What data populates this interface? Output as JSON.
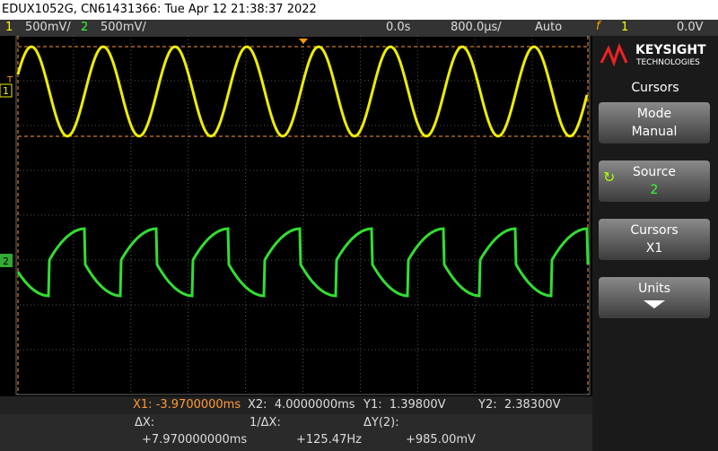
{
  "header": {
    "title": "EDUX1052G, CN61431366: Tue Apr 12 21:38:37 2022"
  },
  "status_bar": {
    "ch1_num": "1",
    "ch1_scale": "500mV/",
    "ch2_num": "2",
    "ch2_scale": "500mV/",
    "delay": "0.0s",
    "timebase": "800.0µs/",
    "trigger_mode": "Auto",
    "trigger_icon": "f",
    "trigger_source": "1",
    "trigger_level": "0.0V"
  },
  "screen_markers": {
    "trigger": "T",
    "ch1": "1",
    "ch2": "2"
  },
  "side_panel": {
    "brand": "KEYSIGHT",
    "brand_sub": "TECHNOLOGIES",
    "menu_title": "Cursors",
    "buttons": [
      {
        "label": "Mode",
        "value": "Manual"
      },
      {
        "label": "Source",
        "value": "2"
      },
      {
        "label": "Cursors",
        "value": "X1"
      },
      {
        "label": "Units"
      }
    ]
  },
  "cursor_readout": {
    "x1": "X1: -3.9700000ms",
    "x2": "X2:  4.0000000ms",
    "y1": "Y1:  1.39800V",
    "y2": "Y2:  2.38300V",
    "dx_label": "ΔX:",
    "dx_value": "+7.970000000ms",
    "inv_dx_label": "1/ΔX:",
    "inv_dx_value": "+125.47Hz",
    "dy_label": "ΔY(2):",
    "dy_value": "+985.00mV"
  }
}
